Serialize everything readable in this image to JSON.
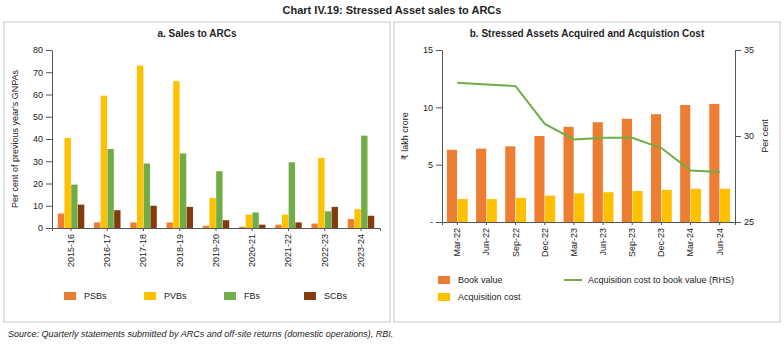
{
  "title": "Chart IV.19: Stressed Asset sales to ARCs",
  "source": "Source: Quarterly statements submitted by ARCs and off-site returns (domestic operations), RBI.",
  "chart_data": [
    {
      "type": "bar",
      "title": "a. Sales to ARCs",
      "y_label": "Per cent of previous year's GNPAs",
      "categories": [
        "2015-16",
        "2016-17",
        "2017-18",
        "2018-19",
        "2019-20",
        "2020-21",
        "2021-22",
        "2022-23",
        "2023-24"
      ],
      "series": [
        {
          "name": "PSBs",
          "color": "#ED7D31",
          "values": [
            6.5,
            2.5,
            2.5,
            2.5,
            1,
            0.5,
            1.5,
            2,
            4
          ]
        },
        {
          "name": "PVBs",
          "color": "#FFC000",
          "values": [
            40.5,
            59.5,
            73,
            66,
            13.5,
            6,
            6,
            31.5,
            8.5
          ]
        },
        {
          "name": "FBs",
          "color": "#70AD47",
          "values": [
            19.5,
            35.5,
            29,
            33.5,
            25.5,
            7,
            29.5,
            7.5,
            41.5
          ]
        },
        {
          "name": "SCBs",
          "color": "#843C0C",
          "values": [
            10.5,
            8,
            10,
            9.5,
            3.5,
            1.5,
            2.5,
            9.5,
            5.5
          ]
        }
      ],
      "ylim": [
        0,
        80
      ],
      "yticks": [
        0,
        10,
        20,
        30,
        40,
        50,
        60,
        70,
        80
      ],
      "grid": false,
      "legend": "bottom"
    },
    {
      "type": "bar",
      "title": "b. Stressed Assets Acquired and Acquistion Cost",
      "y_label": "₹ lakh crore",
      "y2_label": "Per cent",
      "categories": [
        "Mar-22",
        "Jun-22",
        "Sep-22",
        "Dec-22",
        "Mar-23",
        "Jun-23",
        "Sep-23",
        "Dec-23",
        "Mar-24",
        "Jun-24"
      ],
      "series": [
        {
          "name": "Book value",
          "type": "bar",
          "color": "#ED7D31",
          "values": [
            6.3,
            6.4,
            6.6,
            7.5,
            8.3,
            8.7,
            9.0,
            9.4,
            10.2,
            10.3
          ]
        },
        {
          "name": "Acquisition cost",
          "type": "bar",
          "color": "#FFC000",
          "values": [
            2.0,
            2.0,
            2.1,
            2.3,
            2.5,
            2.6,
            2.7,
            2.8,
            2.9,
            2.9
          ]
        },
        {
          "name": "Acquisition cost to book value (RHS)",
          "type": "line",
          "axis": "y2",
          "color": "#70AD47",
          "values": [
            33.1,
            33.0,
            32.9,
            30.7,
            29.8,
            29.9,
            29.9,
            29.3,
            28.0,
            27.9
          ]
        }
      ],
      "ylim": [
        0,
        15
      ],
      "yticks": [
        {
          "value": 0,
          "label": "-"
        },
        5,
        10,
        15
      ],
      "y2lim": [
        25,
        35
      ],
      "y2ticks": [
        25,
        30,
        35
      ],
      "grid": false,
      "legend": "bottom"
    }
  ]
}
